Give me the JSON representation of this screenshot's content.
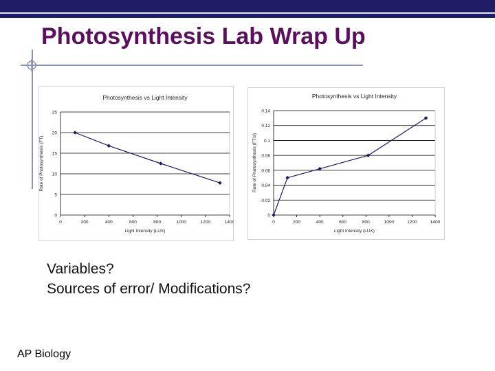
{
  "slide": {
    "title": "Photosynthesis Lab Wrap Up",
    "bullets": [
      "Variables?",
      "Sources of error/ Modifications?"
    ],
    "footer": "AP Biology",
    "colors": {
      "title": "#5b0f5e",
      "bar": "#1f1d66",
      "rule": "#8a92b5"
    }
  },
  "chart_data": [
    {
      "type": "line",
      "title": "Photosynthesis vs Light Intensity",
      "xlabel": "Light Intensity (LUX)",
      "ylabel": "Rate of Photosynthesis (FT)",
      "xlim": [
        0,
        1400
      ],
      "ylim": [
        0,
        25
      ],
      "xticks": [
        0,
        200,
        400,
        600,
        800,
        1000,
        1200,
        1400
      ],
      "yticks": [
        0,
        5,
        10,
        15,
        20,
        25
      ],
      "x": [
        120,
        400,
        830,
        1320
      ],
      "y": [
        20,
        16.8,
        12.5,
        7.8
      ],
      "grid": "horizontal"
    },
    {
      "type": "line",
      "title": "Photosynthesis vs Light Intensity",
      "xlabel": "Light Intensity (LUX)",
      "ylabel": "Rate of Photosynthesis (FT/s)",
      "xlim": [
        0,
        1400
      ],
      "ylim": [
        0,
        0.14
      ],
      "xticks": [
        0,
        200,
        400,
        600,
        800,
        1000,
        1200,
        1400
      ],
      "yticks": [
        0,
        0.02,
        0.04,
        0.06,
        0.08,
        0.1,
        0.12,
        0.14
      ],
      "ytick_labels": [
        "0",
        "0.02",
        "0.04",
        "0.06",
        "0.08",
        "0.1",
        "0.12",
        "0.14"
      ],
      "x": [
        0,
        120,
        400,
        820,
        1320
      ],
      "y": [
        0,
        0.05,
        0.062,
        0.08,
        0.13
      ],
      "grid": "horizontal"
    }
  ]
}
